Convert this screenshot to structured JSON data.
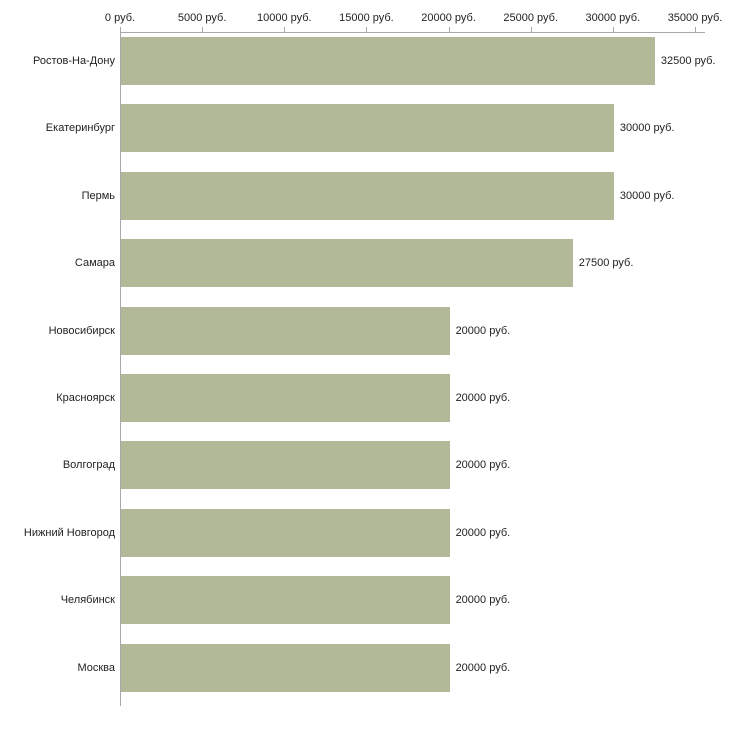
{
  "chart_data": {
    "type": "bar",
    "orientation": "horizontal",
    "title": "",
    "xlabel": "",
    "ylabel": "",
    "xlim": [
      0,
      35000
    ],
    "grid": false,
    "legend": false,
    "categories": [
      "Ростов-На-Дону",
      "Екатеринбург",
      "Пермь",
      "Самара",
      "Новосибирск",
      "Красноярск",
      "Волгоград",
      "Нижний Новгород",
      "Челябинск",
      "Москва"
    ],
    "values": [
      32500,
      30000,
      30000,
      27500,
      20000,
      20000,
      20000,
      20000,
      20000,
      20000
    ],
    "value_labels": [
      "32500 руб.",
      "30000 руб.",
      "30000 руб.",
      "27500 руб.",
      "20000 руб.",
      "20000 руб.",
      "20000 руб.",
      "20000 руб.",
      "20000 руб.",
      "20000 руб."
    ],
    "x_ticks": [
      0,
      5000,
      10000,
      15000,
      20000,
      25000,
      30000,
      35000
    ],
    "x_tick_labels": [
      "0 руб.",
      "5000 руб.",
      "10000 руб.",
      "15000 руб.",
      "20000 руб.",
      "25000 руб.",
      "30000 руб.",
      "35000 руб."
    ],
    "bar_color": "#b2b999",
    "axis_color": "#a8a8a8",
    "text_color": "#222222"
  }
}
